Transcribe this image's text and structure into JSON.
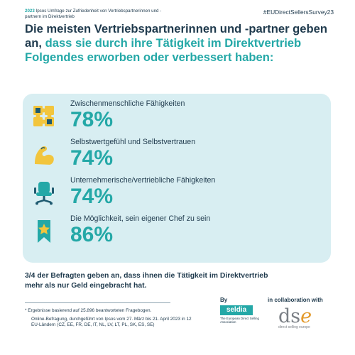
{
  "header": {
    "year": "2023",
    "survey_title_rest": "Ipsos Umfrage zur Zufriedenheit von Vertriebspartnerinnen und -partnern im Direktvertrieb",
    "hashtag": "#EUDirectSellersSurvey23"
  },
  "headline": {
    "dark_part": "Die meisten Vertriebspartnerinnen und -partner geben an, ",
    "teal_part": "dass sie durch ihre Tätigkeit im Direktvertrieb Folgendes erworben oder verbessert haben:"
  },
  "items": [
    {
      "label": "Zwischenmenschliche Fähigkeiten",
      "percent": "78%",
      "icon": "puzzle-icon"
    },
    {
      "label": "Selbstwertgefühl und Selbstvertrauen",
      "percent": "74%",
      "icon": "flexed-arm-icon"
    },
    {
      "label": "Unternehmerische/vertriebliche Fähigkeiten",
      "percent": "74%",
      "icon": "office-chair-icon"
    },
    {
      "label": "Die Möglichkeit, sein eigener Chef zu sein",
      "percent": "86%",
      "icon": "star-bookmark-icon"
    }
  ],
  "conclusion": "3/4 der Befragten geben an, dass ihnen die Tätigkeit im Direktvertrieb mehr als nur Geld eingebracht hat.",
  "footnotes": {
    "note1": "* Ergebnisse basierend auf 25.896 beantworteten Fragebogen.",
    "note2": "Online-Befragung, durchgeführt von Ipsos vom 27. März bis 21. April 2023 in 12 EU-Ländern (CZ, EE, FR, DE, IT, NL, LV, LT, PL, SK, ES, SE)"
  },
  "partners": {
    "by_label": "By",
    "seldia_name": "seldia",
    "seldia_sub": "The European Direct Selling Association",
    "collab_label": "in collaboration with",
    "dse_letters": "ds",
    "dse_e": "e",
    "dse_sub": "direct selling europe"
  },
  "colors": {
    "teal": "#24a8a7",
    "navy": "#1f3a4d",
    "panel": "#d8eef2",
    "icon_yellow": "#f2c53d",
    "icon_navy": "#1f5a70"
  }
}
